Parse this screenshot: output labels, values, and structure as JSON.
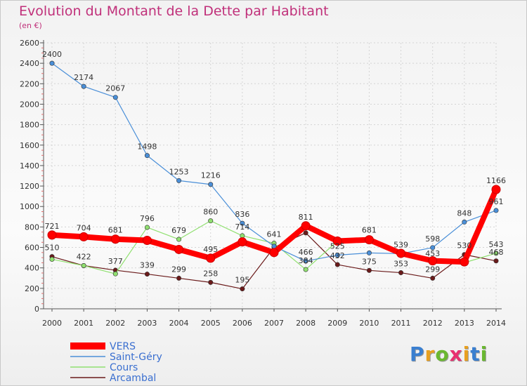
{
  "header": {
    "title": "Evolution du Montant de la Dette par Habitant",
    "subtitle": "(en €)"
  },
  "logo": {
    "text": "Proxiti",
    "colors": [
      "#3a7fd0",
      "#e8a020",
      "#6ab830",
      "#e83070",
      "#e8a020",
      "#3a7fd0",
      "#6ab830"
    ]
  },
  "chart_data": {
    "type": "line",
    "categories": [
      "2000",
      "2001",
      "2002",
      "2003",
      "2004",
      "2005",
      "2006",
      "2007",
      "2008",
      "2009",
      "2010",
      "2011",
      "2012",
      "2013",
      "2014"
    ],
    "ylim": [
      0,
      2600
    ],
    "yticks": [
      "0",
      "200",
      "400",
      "600",
      "800",
      "1000",
      "1200",
      "1400",
      "1600",
      "1800",
      "2000",
      "2200",
      "2400",
      "2600"
    ],
    "grid": true,
    "legend_position": "bottom-left",
    "series": [
      {
        "name": "VERS",
        "color": "#ff0000",
        "values": [
          721,
          704,
          681,
          669,
          580,
          495,
          654,
          550,
          811,
          662,
          675,
          542,
          469,
          459,
          1166
        ],
        "labels": [
          "721",
          "704",
          "681",
          "",
          "",
          "495",
          "",
          "",
          "811",
          "",
          "",
          "",
          "",
          "",
          "1166"
        ]
      },
      {
        "name": "Saint-Géry",
        "color": "#4a8fd8",
        "values": [
          2400,
          2174,
          2067,
          1498,
          1253,
          1216,
          836,
          611,
          466,
          525,
          546,
          539,
          598,
          848,
          961
        ],
        "labels": [
          "2400",
          "2174",
          "2067",
          "1498",
          "1253",
          "1216",
          "836",
          "",
          "466",
          "525",
          "",
          "539",
          "598",
          "848",
          "961"
        ]
      },
      {
        "name": "Cours",
        "color": "#90e070",
        "values": [
          484,
          422,
          342,
          796,
          679,
          860,
          714,
          641,
          384,
          662,
          681,
          542,
          453,
          451,
          543
        ],
        "labels": [
          "",
          "",
          "",
          "796",
          "679",
          "860",
          "714",
          "641",
          "384",
          "",
          "681",
          "",
          "453",
          "",
          "543"
        ]
      },
      {
        "name": "Arcambal",
        "color": "#6a1a1a",
        "values": [
          510,
          422,
          377,
          339,
          299,
          258,
          195,
          600,
          742,
          432,
          375,
          353,
          299,
          530,
          468
        ],
        "labels": [
          "510",
          "422",
          "377",
          "339",
          "299",
          "258",
          "195",
          "",
          "",
          "432",
          "375",
          "353",
          "299",
          "530",
          "468"
        ]
      }
    ]
  }
}
